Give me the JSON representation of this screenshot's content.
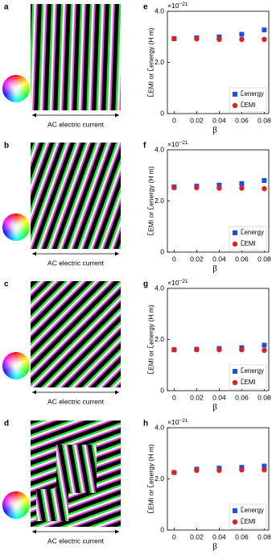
{
  "panels": [
    {
      "label": "a",
      "caption": "AC electric current"
    },
    {
      "label": "b",
      "caption": "AC electric current"
    },
    {
      "label": "c",
      "caption": "AC electric current"
    },
    {
      "label": "d",
      "caption": "AC electric current"
    }
  ],
  "chart_data": [
    {
      "type": "scatter",
      "label": "e",
      "multiplier": {
        "base": "×10",
        "exponent": "−21"
      },
      "ylabel": "L̃EMI or L̃energy (H m)",
      "xlabel": "β",
      "x": [
        0,
        0.02,
        0.04,
        0.06,
        0.08
      ],
      "series": [
        {
          "name": "L̃energy",
          "color": "#1f4fe0",
          "marker": "square",
          "values": [
            2.93,
            2.96,
            3.0,
            3.1,
            3.27
          ]
        },
        {
          "name": "L̃EMI",
          "color": "#e02020",
          "marker": "circle",
          "values": [
            2.93,
            2.92,
            2.9,
            2.9,
            2.9
          ]
        }
      ],
      "xlim": [
        -0.006,
        0.084
      ],
      "ylim": [
        0,
        4
      ],
      "xticks": [
        0,
        0.02,
        0.04,
        0.06,
        0.08
      ],
      "yticks": [
        0,
        {
          "value": 2,
          "label": "2.0"
        },
        {
          "value": 4,
          "label": "4.0"
        }
      ],
      "legend": "lower right"
    },
    {
      "type": "scatter",
      "label": "f",
      "multiplier": {
        "base": "×10",
        "exponent": "−21"
      },
      "ylabel": "L̃EMI or L̃energy (H m)",
      "xlabel": "β",
      "x": [
        0,
        0.02,
        0.04,
        0.06,
        0.08
      ],
      "series": [
        {
          "name": "L̃energy",
          "color": "#1f4fe0",
          "marker": "square",
          "values": [
            2.55,
            2.58,
            2.62,
            2.68,
            2.8
          ]
        },
        {
          "name": "L̃EMI",
          "color": "#e02020",
          "marker": "circle",
          "values": [
            2.52,
            2.52,
            2.5,
            2.5,
            2.48
          ]
        }
      ],
      "xlim": [
        -0.006,
        0.084
      ],
      "ylim": [
        0,
        4
      ],
      "xticks": [
        0,
        0.02,
        0.04,
        0.06,
        0.08
      ],
      "yticks": [
        0,
        {
          "value": 2,
          "label": "2.0"
        },
        {
          "value": 4,
          "label": "4.0"
        }
      ],
      "legend": "lower right"
    },
    {
      "type": "scatter",
      "label": "g",
      "multiplier": {
        "base": "×10",
        "exponent": "−21"
      },
      "ylabel": "L̃EMI or L̃energy (H m)",
      "xlabel": "β",
      "x": [
        0,
        0.02,
        0.04,
        0.06,
        0.08
      ],
      "series": [
        {
          "name": "L̃energy",
          "color": "#1f4fe0",
          "marker": "square",
          "values": [
            1.6,
            1.62,
            1.65,
            1.68,
            1.78
          ]
        },
        {
          "name": "L̃EMI",
          "color": "#e02020",
          "marker": "circle",
          "values": [
            1.6,
            1.6,
            1.6,
            1.6,
            1.58
          ]
        }
      ],
      "xlim": [
        -0.006,
        0.084
      ],
      "ylim": [
        0,
        4
      ],
      "xticks": [
        0,
        0.02,
        0.04,
        0.06,
        0.08
      ],
      "yticks": [
        0,
        {
          "value": 2,
          "label": "2.0"
        },
        {
          "value": 4,
          "label": "4.0"
        }
      ],
      "legend": "lower right"
    },
    {
      "type": "scatter",
      "label": "h",
      "multiplier": {
        "base": "×10",
        "exponent": "−21"
      },
      "ylabel": "L̃EMI or L̃energy (H m)",
      "xlabel": "β",
      "x": [
        0,
        0.02,
        0.04,
        0.06,
        0.08
      ],
      "series": [
        {
          "name": "L̃energy",
          "color": "#1f4fe0",
          "marker": "square",
          "values": [
            2.25,
            2.38,
            2.42,
            2.45,
            2.5
          ]
        },
        {
          "name": "L̃EMI",
          "color": "#e02020",
          "marker": "circle",
          "values": [
            2.25,
            2.33,
            2.33,
            2.35,
            2.35
          ]
        }
      ],
      "xlim": [
        -0.006,
        0.084
      ],
      "ylim": [
        0,
        4
      ],
      "xticks": [
        0,
        0.02,
        0.04,
        0.06,
        0.08
      ],
      "yticks": [
        0,
        {
          "value": 2,
          "label": "2.0"
        },
        {
          "value": 4,
          "label": "4.0"
        }
      ],
      "legend": "lower right"
    }
  ]
}
